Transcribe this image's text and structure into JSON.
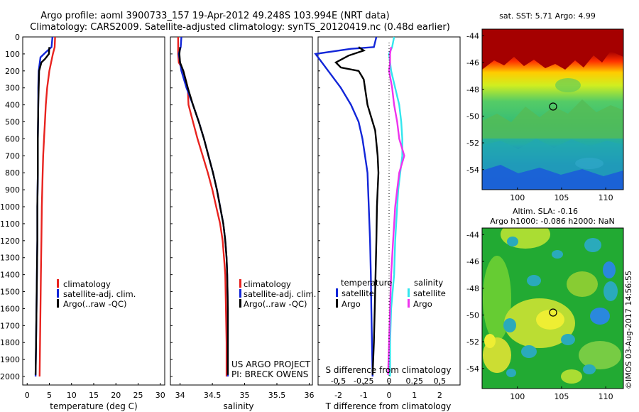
{
  "title_line1": "Argo profile: aoml 3900733_157 19-Apr-2012 49.248S 103.994E (NRT data)",
  "title_line2": "Climatology: CARS2009. Satellite-adjusted climatology: synTS_20120419.nc (0.48d earlier)",
  "panel_temp": {
    "xlabel": "temperature (deg C)",
    "xticks": [
      "0",
      "5",
      "10",
      "15",
      "20",
      "25",
      "30"
    ],
    "legend": [
      "climatology",
      "satellite-adj. clim.",
      "Argo(..raw -QC)"
    ]
  },
  "panel_sal": {
    "xlabel": "salinity",
    "xticks": [
      "34",
      "34.5",
      "35",
      "35.5",
      "36"
    ],
    "legend": [
      "climatology",
      "satellite-adj. clim.",
      "Argo(..raw -QC)"
    ],
    "note_line1": "US ARGO PROJECT",
    "note_line2": "PI: BRECK OWENS"
  },
  "panel_diff": {
    "xlabel": "T difference from climatology",
    "top_xlabel": "S difference from climatology",
    "xticks": [
      "-2",
      "-1",
      "0",
      "1",
      "2"
    ],
    "top_xticks": [
      "-0.5",
      "-0.25",
      "0",
      "0.25",
      "0.5"
    ],
    "legend_temp_title": "temperature",
    "legend_sal_title": "salinity",
    "legend_items": [
      "satellite",
      "Argo",
      "satellite",
      "Argo"
    ]
  },
  "yticks": [
    "0",
    "100",
    "200",
    "300",
    "400",
    "500",
    "600",
    "700",
    "800",
    "900",
    "1000",
    "1100",
    "1200",
    "1300",
    "1400",
    "1500",
    "1600",
    "1700",
    "1800",
    "1900",
    "2000"
  ],
  "map_sst": {
    "title": "sat. SST: 5.71  Argo: 4.99",
    "yticks": [
      "-44",
      "-46",
      "-48",
      "-50",
      "-52",
      "-54"
    ],
    "xticks": [
      "100",
      "105",
      "110"
    ]
  },
  "map_sla": {
    "title_line1": "Altim. SLA: -0.16",
    "title_line2": "Argo h1000: -0.086 h2000: NaN",
    "yticks": [
      "-44",
      "-46",
      "-48",
      "-50",
      "-52",
      "-54"
    ],
    "xticks": [
      "100",
      "105",
      "110"
    ]
  },
  "side_stamp": "©IMOS 03-Aug-2017 14:56:55",
  "colors": {
    "climatology": "#e8231f",
    "satellite": "#1226d8",
    "argo": "#000000",
    "sal_satellite": "#33e6ee",
    "sal_argo": "#ee33ee"
  },
  "chart_data": [
    {
      "type": "line",
      "name": "temperature profile",
      "xlabel": "temperature (deg C)",
      "ylabel": "",
      "xlim": [
        -1,
        31
      ],
      "ylim": [
        2050,
        0
      ],
      "depth_reversed": true,
      "series": [
        {
          "name": "climatology",
          "color": "#e8231f",
          "points": [
            [
              6.3,
              0
            ],
            [
              6.2,
              60
            ],
            [
              5.8,
              100
            ],
            [
              5.0,
              200
            ],
            [
              4.5,
              300
            ],
            [
              4.2,
              400
            ],
            [
              4.0,
              500
            ],
            [
              3.8,
              600
            ],
            [
              3.6,
              700
            ],
            [
              3.5,
              800
            ],
            [
              3.4,
              900
            ],
            [
              3.3,
              1000
            ],
            [
              3.2,
              1200
            ],
            [
              3.1,
              1400
            ],
            [
              3.0,
              1600
            ],
            [
              2.9,
              1800
            ],
            [
              2.8,
              2000
            ]
          ]
        },
        {
          "name": "satellite-adj. clim.",
          "color": "#1226d8",
          "points": [
            [
              5.7,
              0
            ],
            [
              5.5,
              60
            ],
            [
              4.2,
              90
            ],
            [
              3.0,
              120
            ],
            [
              2.6,
              200
            ],
            [
              2.5,
              300
            ],
            [
              2.5,
              400
            ],
            [
              2.4,
              600
            ],
            [
              2.4,
              800
            ],
            [
              2.3,
              1000
            ],
            [
              2.3,
              1200
            ],
            [
              2.2,
              1400
            ],
            [
              2.1,
              1600
            ],
            [
              2.0,
              1800
            ],
            [
              1.9,
              2000
            ]
          ]
        },
        {
          "name": "Argo(..raw -QC)",
          "color": "#000000",
          "points": [
            [
              5.0,
              60
            ],
            [
              4.9,
              100
            ],
            [
              4.0,
              130
            ],
            [
              3.2,
              150
            ],
            [
              2.7,
              200
            ],
            [
              2.6,
              300
            ],
            [
              2.5,
              400
            ],
            [
              2.4,
              600
            ],
            [
              2.4,
              800
            ],
            [
              2.3,
              1000
            ],
            [
              2.3,
              1200
            ],
            [
              2.2,
              1400
            ],
            [
              2.1,
              1600
            ],
            [
              2.0,
              1800
            ],
            [
              1.9,
              1990
            ]
          ]
        }
      ]
    },
    {
      "type": "line",
      "name": "salinity profile",
      "xlabel": "salinity",
      "xlim": [
        33.85,
        36.05
      ],
      "ylim": [
        2050,
        0
      ],
      "depth_reversed": true,
      "series": [
        {
          "name": "climatology",
          "color": "#e8231f",
          "points": [
            [
              33.97,
              0
            ],
            [
              33.97,
              100
            ],
            [
              33.98,
              150
            ],
            [
              34.05,
              200
            ],
            [
              34.12,
              300
            ],
            [
              34.13,
              400
            ],
            [
              34.2,
              500
            ],
            [
              34.27,
              600
            ],
            [
              34.35,
              700
            ],
            [
              34.43,
              800
            ],
            [
              34.5,
              900
            ],
            [
              34.56,
              1000
            ],
            [
              34.62,
              1100
            ],
            [
              34.66,
              1200
            ],
            [
              34.68,
              1300
            ],
            [
              34.7,
              1400
            ],
            [
              34.71,
              1600
            ],
            [
              34.72,
              1800
            ],
            [
              34.72,
              2000
            ]
          ]
        },
        {
          "name": "satellite-adj. clim.",
          "color": "#1226d8",
          "points": [
            [
              34.02,
              0
            ],
            [
              34.01,
              60
            ],
            [
              33.98,
              100
            ],
            [
              34.02,
              200
            ],
            [
              34.1,
              300
            ],
            [
              34.2,
              400
            ],
            [
              34.29,
              500
            ],
            [
              34.37,
              600
            ],
            [
              34.44,
              700
            ],
            [
              34.51,
              800
            ],
            [
              34.57,
              900
            ],
            [
              34.62,
              1000
            ],
            [
              34.67,
              1100
            ],
            [
              34.7,
              1200
            ],
            [
              34.72,
              1300
            ],
            [
              34.73,
              1400
            ],
            [
              34.74,
              1600
            ],
            [
              34.74,
              1800
            ],
            [
              34.74,
              2000
            ]
          ]
        },
        {
          "name": "Argo(..raw -QC)",
          "color": "#000000",
          "points": [
            [
              34.0,
              60
            ],
            [
              33.99,
              100
            ],
            [
              34.0,
              150
            ],
            [
              34.05,
              200
            ],
            [
              34.12,
              300
            ],
            [
              34.2,
              400
            ],
            [
              34.29,
              500
            ],
            [
              34.37,
              600
            ],
            [
              34.44,
              700
            ],
            [
              34.51,
              800
            ],
            [
              34.57,
              900
            ],
            [
              34.62,
              1000
            ],
            [
              34.67,
              1100
            ],
            [
              34.7,
              1200
            ],
            [
              34.72,
              1300
            ],
            [
              34.73,
              1400
            ],
            [
              34.74,
              1600
            ],
            [
              34.74,
              1800
            ],
            [
              34.74,
              1990
            ]
          ]
        }
      ]
    },
    {
      "type": "line",
      "name": "difference from climatology",
      "xlabel": "T difference from climatology",
      "top_xlabel": "S difference from climatology",
      "xlim": [
        -2.8,
        2.8
      ],
      "top_xlim": [
        -0.7,
        0.7
      ],
      "ylim": [
        2050,
        0
      ],
      "depth_reversed": true,
      "series": [
        {
          "name": "temperature satellite",
          "axis": "bottom",
          "color": "#1226d8",
          "points": [
            [
              -0.5,
              0
            ],
            [
              -0.6,
              60
            ],
            [
              -1.5,
              70
            ],
            [
              -2.9,
              100
            ],
            [
              -2.7,
              140
            ],
            [
              -2.4,
              200
            ],
            [
              -1.9,
              300
            ],
            [
              -1.5,
              400
            ],
            [
              -1.2,
              500
            ],
            [
              -1.05,
              600
            ],
            [
              -0.95,
              700
            ],
            [
              -0.85,
              800
            ],
            [
              -0.8,
              1000
            ],
            [
              -0.75,
              1200
            ],
            [
              -0.72,
              1400
            ],
            [
              -0.7,
              1600
            ],
            [
              -0.65,
              2000
            ]
          ]
        },
        {
          "name": "temperature Argo",
          "axis": "bottom",
          "color": "#000000",
          "points": [
            [
              -1.2,
              60
            ],
            [
              -1.0,
              80
            ],
            [
              -1.6,
              110
            ],
            [
              -2.1,
              150
            ],
            [
              -1.9,
              180
            ],
            [
              -1.2,
              200
            ],
            [
              -1.0,
              250
            ],
            [
              -0.85,
              400
            ],
            [
              -0.55,
              550
            ],
            [
              -0.45,
              700
            ],
            [
              -0.42,
              800
            ],
            [
              -0.45,
              900
            ],
            [
              -0.48,
              1000
            ],
            [
              -0.5,
              1200
            ],
            [
              -0.55,
              1500
            ],
            [
              -0.6,
              1800
            ],
            [
              -0.65,
              1990
            ]
          ]
        },
        {
          "name": "salinity satellite",
          "axis": "top",
          "color": "#33e6ee",
          "points": [
            [
              0.05,
              0
            ],
            [
              0.03,
              60
            ],
            [
              0.0,
              100
            ],
            [
              0.02,
              200
            ],
            [
              0.06,
              300
            ],
            [
              0.1,
              400
            ],
            [
              0.12,
              500
            ],
            [
              0.13,
              600
            ],
            [
              0.13,
              700
            ],
            [
              0.11,
              800
            ],
            [
              0.09,
              900
            ],
            [
              0.08,
              1000
            ],
            [
              0.06,
              1200
            ],
            [
              0.05,
              1400
            ],
            [
              0.02,
              1600
            ],
            [
              0.01,
              1800
            ],
            [
              0.01,
              2000
            ]
          ]
        },
        {
          "name": "salinity Argo",
          "axis": "top",
          "color": "#ee33ee",
          "points": [
            [
              0.02,
              60
            ],
            [
              0.01,
              100
            ],
            [
              0.01,
              150
            ],
            [
              0.0,
              200
            ],
            [
              0.03,
              300
            ],
            [
              0.05,
              400
            ],
            [
              0.08,
              500
            ],
            [
              0.1,
              600
            ],
            [
              0.15,
              700
            ],
            [
              0.1,
              800
            ],
            [
              0.08,
              900
            ],
            [
              0.06,
              1000
            ],
            [
              0.04,
              1200
            ],
            [
              0.02,
              1400
            ],
            [
              0.01,
              1600
            ],
            [
              0.0,
              1800
            ],
            [
              -0.01,
              1990
            ]
          ]
        }
      ]
    },
    {
      "type": "heatmap",
      "name": "satellite SST map",
      "title": "sat. SST: 5.71  Argo: 4.99",
      "xlim": [
        96,
        112
      ],
      "ylim": [
        -55.5,
        -43.5
      ],
      "marker": [
        104,
        -49.25
      ]
    },
    {
      "type": "heatmap",
      "name": "altimetry SLA map",
      "title": "Altim. SLA: -0.16",
      "xlim": [
        96,
        112
      ],
      "ylim": [
        -55.5,
        -43.5
      ],
      "marker": [
        104,
        -49.25
      ]
    }
  ]
}
